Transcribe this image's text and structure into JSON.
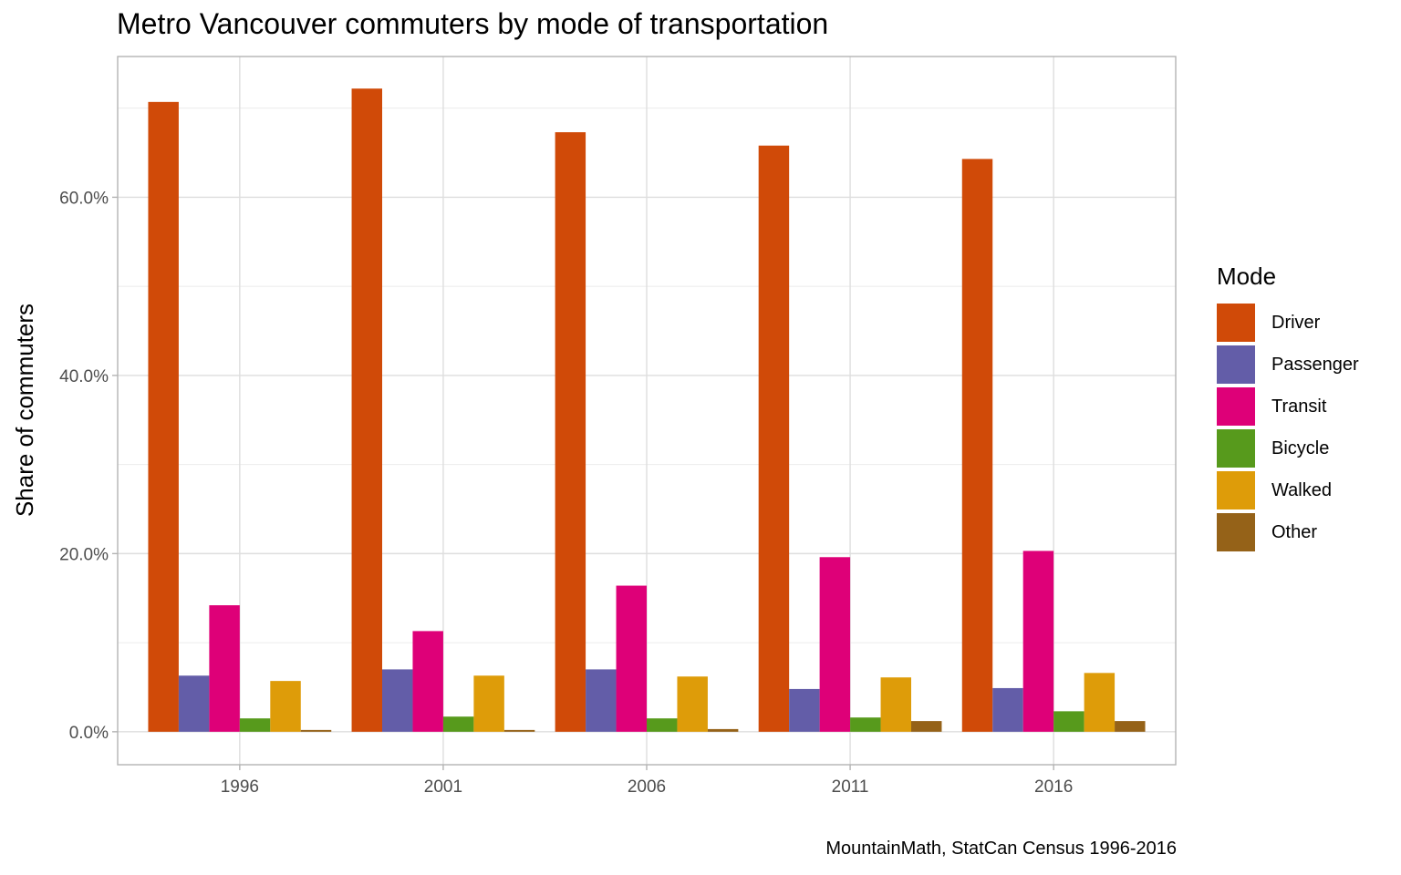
{
  "chart_data": {
    "type": "bar",
    "title": "Metro Vancouver commuters by mode of transportation",
    "caption": "MountainMath, StatCan Census 1996-2016",
    "xlabel": "",
    "ylabel": "Share of commuters",
    "ylim": [
      -3.7,
      75.8
    ],
    "yticks": [
      0,
      20,
      40,
      60
    ],
    "ytick_labels": [
      "0.0%",
      "20.0%",
      "40.0%",
      "60.0%"
    ],
    "grid": true,
    "legend": {
      "title": "Mode",
      "position": "right"
    },
    "categories": [
      "1996",
      "2001",
      "2006",
      "2011",
      "2016"
    ],
    "series": [
      {
        "name": "Driver",
        "color": "#D04A08",
        "values": [
          70.7,
          72.2,
          67.3,
          65.8,
          64.3
        ]
      },
      {
        "name": "Passenger",
        "color": "#635DA8",
        "values": [
          6.3,
          7.0,
          7.0,
          4.8,
          4.9
        ]
      },
      {
        "name": "Transit",
        "color": "#DE0078",
        "values": [
          14.2,
          11.3,
          16.4,
          19.6,
          20.3
        ]
      },
      {
        "name": "Bicycle",
        "color": "#579A1C",
        "values": [
          1.5,
          1.7,
          1.5,
          1.6,
          2.3
        ]
      },
      {
        "name": "Walked",
        "color": "#DE9C09",
        "values": [
          5.7,
          6.3,
          6.2,
          6.1,
          6.6
        ]
      },
      {
        "name": "Other",
        "color": "#956218",
        "values": [
          0.2,
          0.2,
          0.3,
          1.2,
          1.2
        ]
      }
    ]
  }
}
